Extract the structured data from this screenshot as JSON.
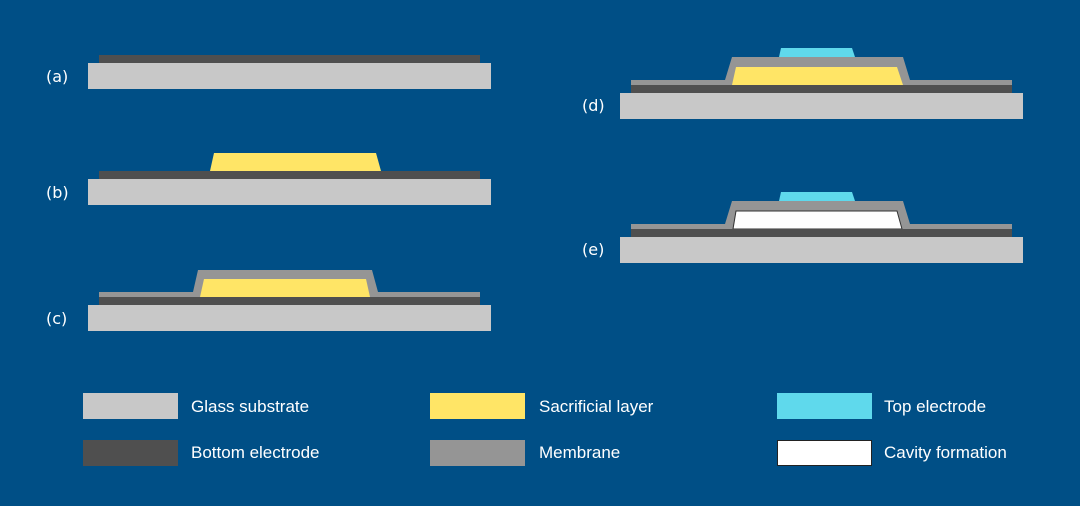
{
  "colors": {
    "background": "#004f86",
    "glass_substrate": "#c8c8c8",
    "bottom_electrode": "#4f4f4f",
    "sacrificial_layer": "#ffe566",
    "membrane": "#959595",
    "top_electrode": "#5fd9ec",
    "cavity_formation": "#ffffff"
  },
  "steps": [
    {
      "label": "(a)"
    },
    {
      "label": "(b)"
    },
    {
      "label": "(c)"
    },
    {
      "label": "(d)"
    },
    {
      "label": "(e)"
    }
  ],
  "legend": [
    {
      "label": "Glass substrate",
      "color": "#c8c8c8"
    },
    {
      "label": "Bottom electrode",
      "color": "#4f4f4f"
    },
    {
      "label": "Sacrificial layer",
      "color": "#ffe566"
    },
    {
      "label": "Membrane",
      "color": "#959595"
    },
    {
      "label": "Top electrode",
      "color": "#5fd9ec"
    },
    {
      "label": "Cavity formation",
      "color": "#ffffff"
    }
  ]
}
